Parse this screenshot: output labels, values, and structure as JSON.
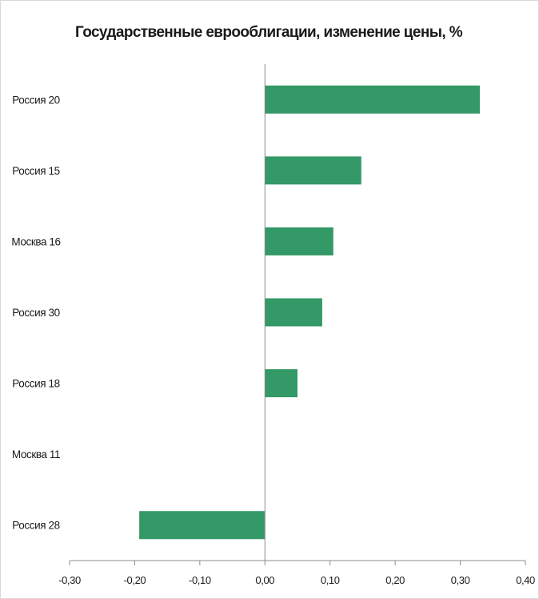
{
  "chart_data": {
    "type": "bar",
    "orientation": "horizontal",
    "title": "Государственные еврооблигации, изменение цены, %",
    "categories": [
      "Россия 20",
      "Россия 15",
      "Москва 16",
      "Россия 30",
      "Россия 18",
      "Москва 11",
      "Россия 28"
    ],
    "values": [
      0.33,
      0.148,
      0.105,
      0.088,
      0.05,
      0.0,
      -0.193
    ],
    "xlim": [
      -0.3,
      0.4
    ],
    "xticks": [
      -0.3,
      -0.2,
      -0.1,
      0.0,
      0.1,
      0.2,
      0.3,
      0.4
    ],
    "xtick_labels": [
      "-0,30",
      "-0,20",
      "-0,10",
      "0,00",
      "0,10",
      "0,20",
      "0,30",
      "0,40"
    ],
    "grid": false,
    "legend": "none",
    "bar_color": "#339966"
  }
}
